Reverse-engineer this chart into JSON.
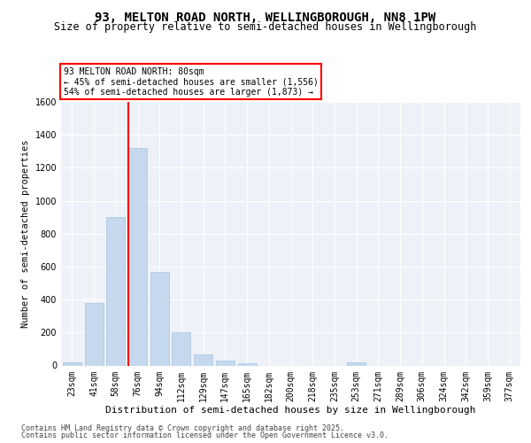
{
  "title": "93, MELTON ROAD NORTH, WELLINGBOROUGH, NN8 1PW",
  "subtitle": "Size of property relative to semi-detached houses in Wellingborough",
  "xlabel": "Distribution of semi-detached houses by size in Wellingborough",
  "ylabel": "Number of semi-detached properties",
  "categories": [
    "23sqm",
    "41sqm",
    "58sqm",
    "76sqm",
    "94sqm",
    "112sqm",
    "129sqm",
    "147sqm",
    "165sqm",
    "182sqm",
    "200sqm",
    "218sqm",
    "235sqm",
    "253sqm",
    "271sqm",
    "289sqm",
    "306sqm",
    "324sqm",
    "342sqm",
    "359sqm",
    "377sqm"
  ],
  "values": [
    20,
    380,
    900,
    1320,
    570,
    200,
    65,
    28,
    12,
    0,
    0,
    0,
    0,
    20,
    0,
    0,
    0,
    0,
    0,
    0,
    0
  ],
  "bar_color": "#c5d8ed",
  "bar_edge_color": "#a8c4dd",
  "vline_color": "red",
  "vline_bin_index": 3,
  "annotation_title": "93 MELTON ROAD NORTH: 80sqm",
  "annotation_line1": "← 45% of semi-detached houses are smaller (1,556)",
  "annotation_line2": "54% of semi-detached houses are larger (1,873) →",
  "ylim": [
    0,
    1600
  ],
  "yticks": [
    0,
    200,
    400,
    600,
    800,
    1000,
    1200,
    1400,
    1600
  ],
  "bg_color": "#eef2f8",
  "footer1": "Contains HM Land Registry data © Crown copyright and database right 2025.",
  "footer2": "Contains public sector information licensed under the Open Government Licence v3.0.",
  "title_fontsize": 10,
  "subtitle_fontsize": 8.5,
  "xlabel_fontsize": 8,
  "ylabel_fontsize": 7.5,
  "tick_fontsize": 7,
  "annot_fontsize": 7,
  "footer_fontsize": 6
}
